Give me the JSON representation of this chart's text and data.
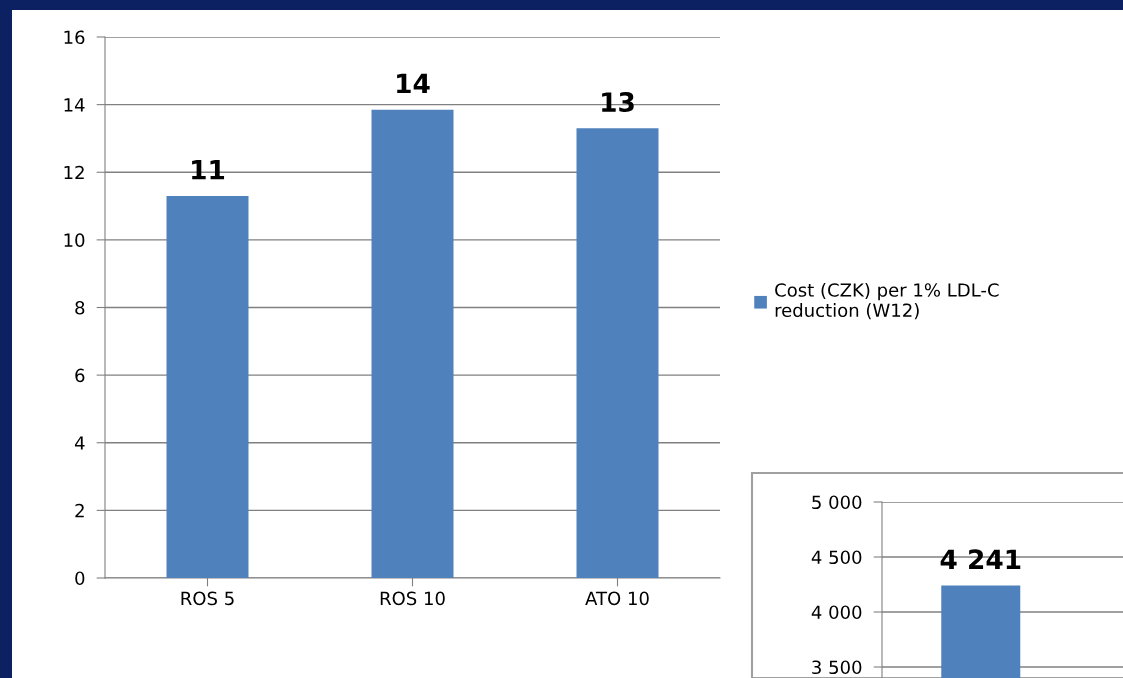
{
  "chart_data": [
    {
      "type": "bar",
      "categories": [
        "ROS 5",
        "ROS 10",
        "ATO 10"
      ],
      "series": [
        {
          "name": "Cost (CZK) per 1% LDL-C reduction (W12)",
          "color": "#4f81bd",
          "values": [
            11.3,
            13.85,
            13.3
          ],
          "value_labels": [
            "11",
            "14",
            "13"
          ]
        }
      ],
      "ylim": [
        0,
        16
      ],
      "yticks": [
        0,
        2,
        4,
        6,
        8,
        10,
        12,
        14,
        16
      ],
      "grid": "y",
      "legend": "right"
    },
    {
      "type": "bar",
      "categories": [
        null
      ],
      "series": [
        {
          "color": "#4f81bd",
          "values": [
            4241
          ],
          "value_labels": [
            "4 241"
          ]
        }
      ],
      "ylim": [
        3400,
        5000
      ],
      "yticks": [
        {
          "value": 3500,
          "label": "3 500"
        },
        {
          "value": 4000,
          "label": "4 000"
        },
        {
          "value": 4500,
          "label": "4 500"
        },
        {
          "value": 5000,
          "label": "5 000"
        }
      ],
      "grid": "y",
      "tick_labels": "y"
    }
  ]
}
